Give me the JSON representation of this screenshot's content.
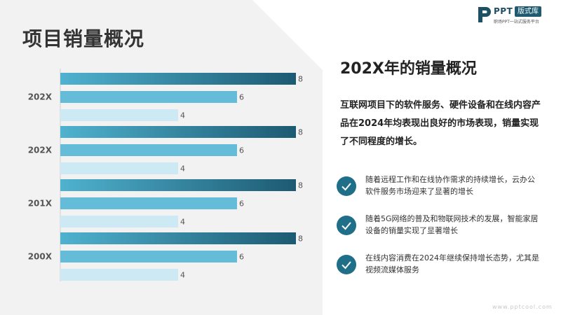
{
  "title": "项目销量概况",
  "logo": {
    "brand": "PPT",
    "badge": "版式库",
    "tagline": "职场PPT一站式服务平台"
  },
  "right": {
    "title": "202X年的销量概况",
    "description": "互联网项目下的软件服务、硬件设备和在线内容产品在2024年均表现出良好的市场表现，销量实现了不同程度的增长。",
    "bullets": [
      {
        "icon": "check-circle-icon",
        "text": "随着远程工作和在线协作需求的持续增长，云办公软件服务市场迎来了显著的增长"
      },
      {
        "icon": "check-circle-icon",
        "text": "随着5G网络的普及和物联网技术的发展，智能家居设备的销量实现了显著增长"
      },
      {
        "icon": "check-circle-icon",
        "text": "在线内容消费在2024年继续保持增长态势，尤其是视频流媒体服务"
      }
    ]
  },
  "watermark": "www.pptcool.com",
  "colors": {
    "dark": "#1e6a83",
    "mid": "#64bcd8",
    "light": "#cde9f3",
    "accent": "#1f6f88"
  },
  "chart_data": {
    "type": "bar",
    "orientation": "horizontal",
    "categories": [
      "202X",
      "202X",
      "201X",
      "200X"
    ],
    "series": [
      {
        "values": [
          8,
          8,
          8,
          8
        ]
      },
      {
        "values": [
          6,
          6,
          6,
          6
        ]
      },
      {
        "values": [
          4,
          4,
          4,
          4
        ]
      }
    ],
    "xlim": [
      0,
      8
    ],
    "grid": false,
    "legend": "none",
    "title": "",
    "xlabel": "",
    "ylabel": ""
  }
}
